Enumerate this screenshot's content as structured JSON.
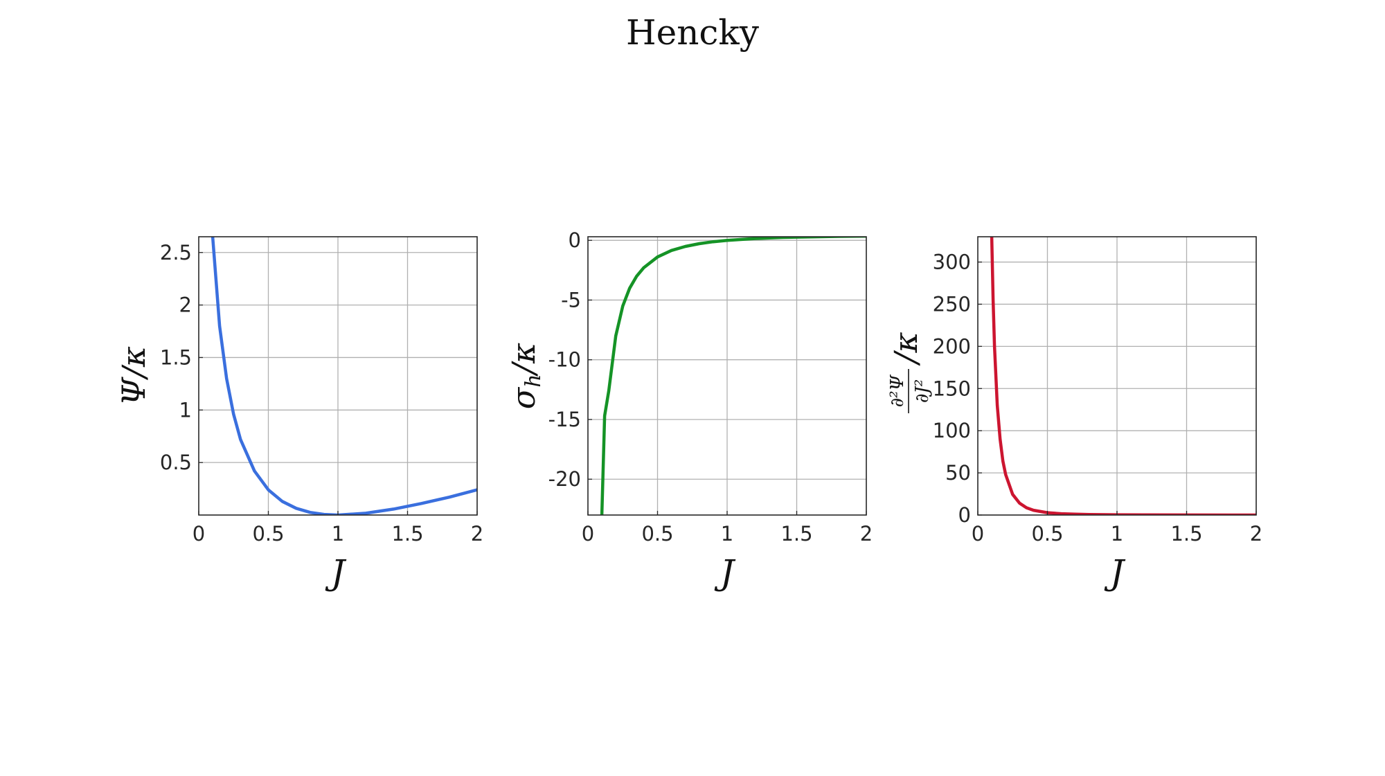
{
  "title": "Hencky",
  "colors": {
    "series_1": "#3a6fde",
    "series_2": "#159326",
    "series_3": "#cc1530",
    "grid": "#b0b0b0",
    "axes": "#262626"
  },
  "chart_data": [
    {
      "type": "line",
      "title": "",
      "xlabel": "J",
      "ylabel": "Ψ/κ",
      "xlim": [
        0,
        2
      ],
      "ylim": [
        0,
        2.65
      ],
      "xticks": [
        0,
        0.5,
        1,
        1.5,
        2
      ],
      "xtick_labels": [
        "0",
        "0.5",
        "1",
        "1.5",
        "2"
      ],
      "yticks": [
        0.5,
        1,
        1.5,
        2,
        2.5
      ],
      "ytick_labels": [
        "0.5",
        "1",
        "1.5",
        "2",
        "2.5"
      ],
      "grid": true,
      "series": [
        {
          "color": "#3a6fde",
          "x": [
            0.1,
            0.15,
            0.2,
            0.25,
            0.3,
            0.4,
            0.5,
            0.6,
            0.7,
            0.8,
            0.9,
            1.0,
            1.2,
            1.4,
            1.6,
            1.8,
            2.0
          ],
          "y": [
            2.65,
            1.8,
            1.3,
            0.96,
            0.72,
            0.42,
            0.24,
            0.13,
            0.064,
            0.025,
            0.006,
            0.0,
            0.017,
            0.057,
            0.11,
            0.17,
            0.24
          ]
        }
      ]
    },
    {
      "type": "line",
      "title": "",
      "xlabel": "J",
      "ylabel": "σh/κ",
      "xlim": [
        0,
        2
      ],
      "ylim": [
        -23,
        0.3
      ],
      "xticks": [
        0,
        0.5,
        1,
        1.5,
        2
      ],
      "xtick_labels": [
        "0",
        "0.5",
        "1",
        "1.5",
        "2"
      ],
      "yticks": [
        -20,
        -15,
        -10,
        -5,
        0
      ],
      "ytick_labels": [
        "-20",
        "-15",
        "-10",
        "-5",
        "0"
      ],
      "grid": true,
      "series": [
        {
          "color": "#159326",
          "x": [
            0.1,
            0.12,
            0.15,
            0.2,
            0.25,
            0.3,
            0.35,
            0.4,
            0.5,
            0.6,
            0.7,
            0.8,
            0.9,
            1.0,
            1.2,
            1.4,
            1.6,
            1.8,
            2.0
          ],
          "y": [
            -23.0,
            -14.7,
            -12.6,
            -8.0,
            -5.5,
            -4.0,
            -3.0,
            -2.3,
            -1.39,
            -0.85,
            -0.51,
            -0.28,
            -0.12,
            0.0,
            0.15,
            0.24,
            0.29,
            0.33,
            0.35
          ]
        }
      ]
    },
    {
      "type": "line",
      "title": "",
      "xlabel": "J",
      "ylabel": "∂²Ψ/∂J² / κ",
      "xlim": [
        0,
        2
      ],
      "ylim": [
        0,
        330
      ],
      "xticks": [
        0,
        0.5,
        1,
        1.5,
        2
      ],
      "xtick_labels": [
        "0",
        "0.5",
        "1",
        "1.5",
        "2"
      ],
      "yticks": [
        0,
        50,
        100,
        150,
        200,
        250,
        300
      ],
      "ytick_labels": [
        "0",
        "50",
        "100",
        "150",
        "200",
        "250",
        "300"
      ],
      "grid": true,
      "series": [
        {
          "color": "#cc1530",
          "x": [
            0.1,
            0.11,
            0.12,
            0.14,
            0.16,
            0.18,
            0.2,
            0.25,
            0.3,
            0.35,
            0.4,
            0.5,
            0.6,
            0.7,
            0.8,
            1.0,
            1.2,
            1.5,
            2.0
          ],
          "y": [
            330.0,
            255.0,
            200.0,
            130.0,
            90.0,
            64.0,
            48.0,
            24.5,
            14.0,
            8.6,
            5.7,
            2.8,
            1.6,
            1.0,
            0.67,
            0.3,
            0.15,
            0.05,
            0.0
          ]
        }
      ]
    }
  ]
}
